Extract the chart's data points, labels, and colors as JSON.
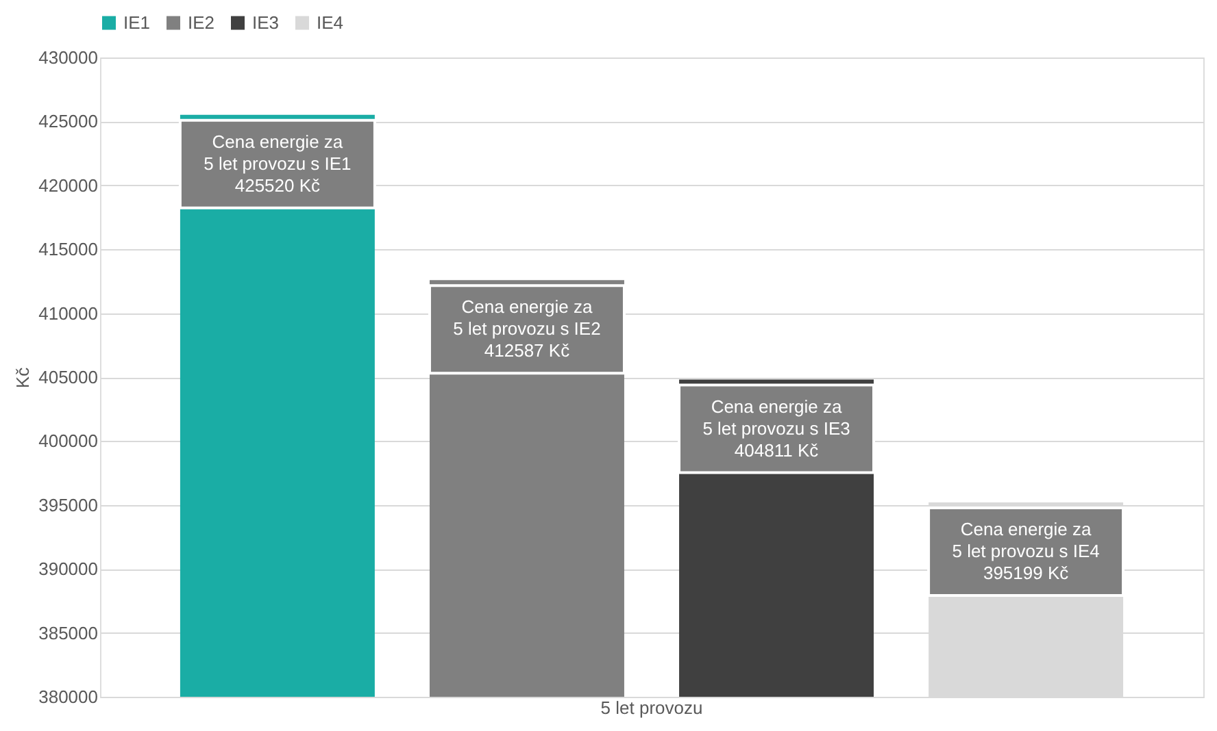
{
  "chart_data": {
    "type": "bar",
    "ylabel": "Kč",
    "categories": [
      "5 let provozu"
    ],
    "series": [
      {
        "name": "IE1",
        "color": "#1aada5",
        "values": [
          425520
        ],
        "value_labels": [
          "Cena energie za\n5 let provozu  s IE1\n425520 Kč"
        ]
      },
      {
        "name": "IE2",
        "color": "#808080",
        "values": [
          412587
        ],
        "value_labels": [
          "Cena energie za\n5 let provozu  s IE2\n412587 Kč"
        ]
      },
      {
        "name": "IE3",
        "color": "#404040",
        "values": [
          404811
        ],
        "value_labels": [
          "Cena energie za\n5 let provozu  s IE3\n404811 Kč"
        ]
      },
      {
        "name": "IE4",
        "color": "#d9d9d9",
        "values": [
          395199
        ],
        "value_labels": [
          "Cena energie za\n5 let provozu  s IE4\n395199 Kč"
        ]
      }
    ],
    "ylim": [
      380000,
      430000
    ],
    "yticks": [
      380000,
      385000,
      390000,
      395000,
      400000,
      405000,
      410000,
      415000,
      420000,
      425000,
      430000
    ],
    "grid": "y",
    "legend": "top"
  }
}
